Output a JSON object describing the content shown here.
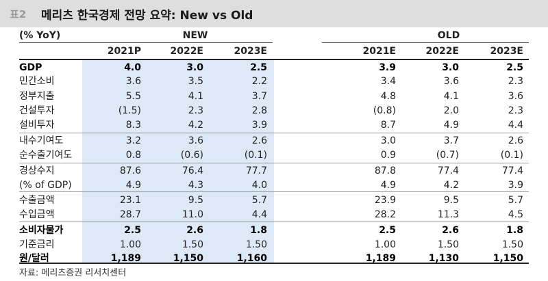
{
  "title": {
    "tag": "표2",
    "text": "메리츠 한국경제 전망 요약: New vs Old"
  },
  "header": {
    "unit": "(% YoY)",
    "new_group": "NEW",
    "old_group": "OLD",
    "new_years": [
      "2021P",
      "2022E",
      "2023E"
    ],
    "old_years": [
      "2021E",
      "2022E",
      "2023E"
    ]
  },
  "rows": [
    {
      "label": "GDP",
      "bold": true,
      "new": [
        "4.0",
        "3.0",
        "2.5"
      ],
      "old": [
        "3.9",
        "3.0",
        "2.5"
      ]
    },
    {
      "label": "민간소비",
      "new": [
        "3.6",
        "3.5",
        "2.2"
      ],
      "old": [
        "3.4",
        "3.6",
        "2.3"
      ]
    },
    {
      "label": "정부지출",
      "new": [
        "5.5",
        "4.1",
        "3.7"
      ],
      "old": [
        "4.8",
        "4.1",
        "3.6"
      ]
    },
    {
      "label": "건설투자",
      "new": [
        "(1.5)",
        "2.3",
        "2.8"
      ],
      "old": [
        "(0.8)",
        "2.0",
        "2.3"
      ]
    },
    {
      "label": "설비투자",
      "new": [
        "8.3",
        "4.2",
        "3.9"
      ],
      "old": [
        "8.7",
        "4.9",
        "4.4"
      ]
    },
    {
      "label": "내수기여도",
      "new": [
        "3.2",
        "3.6",
        "2.6"
      ],
      "old": [
        "3.0",
        "3.7",
        "2.6"
      ]
    },
    {
      "label": "순수출기여도",
      "new": [
        "0.8",
        "(0.6)",
        "(0.1)"
      ],
      "old": [
        "0.9",
        "(0.7)",
        "(0.1)"
      ]
    },
    {
      "label": "경상수지",
      "new": [
        "87.6",
        "76.4",
        "77.7"
      ],
      "old": [
        "87.8",
        "77.4",
        "77.4"
      ]
    },
    {
      "label": "(% of GDP)",
      "new": [
        "4.9",
        "4.3",
        "4.0"
      ],
      "old": [
        "4.9",
        "4.2",
        "3.9"
      ]
    },
    {
      "label": "수출금액",
      "new": [
        "23.1",
        "9.5",
        "5.7"
      ],
      "old": [
        "23.9",
        "9.5",
        "5.7"
      ]
    },
    {
      "label": "수입금액",
      "new": [
        "28.7",
        "11.0",
        "4.4"
      ],
      "old": [
        "28.2",
        "11.3",
        "4.5"
      ]
    },
    {
      "label": "소비자물가",
      "bold": true,
      "new": [
        "2.5",
        "2.6",
        "1.8"
      ],
      "old": [
        "2.5",
        "2.6",
        "1.8"
      ]
    },
    {
      "label": "기준금리",
      "new": [
        "1.00",
        "1.50",
        "1.50"
      ],
      "old": [
        "1.00",
        "1.50",
        "1.50"
      ]
    },
    {
      "label": "원/달러",
      "bold": true,
      "new": [
        "1,189",
        "1,150",
        "1,160"
      ],
      "old": [
        "1,189",
        "1,130",
        "1,150"
      ]
    }
  ],
  "source": "자료: 메리츠증권 리서치센터"
}
